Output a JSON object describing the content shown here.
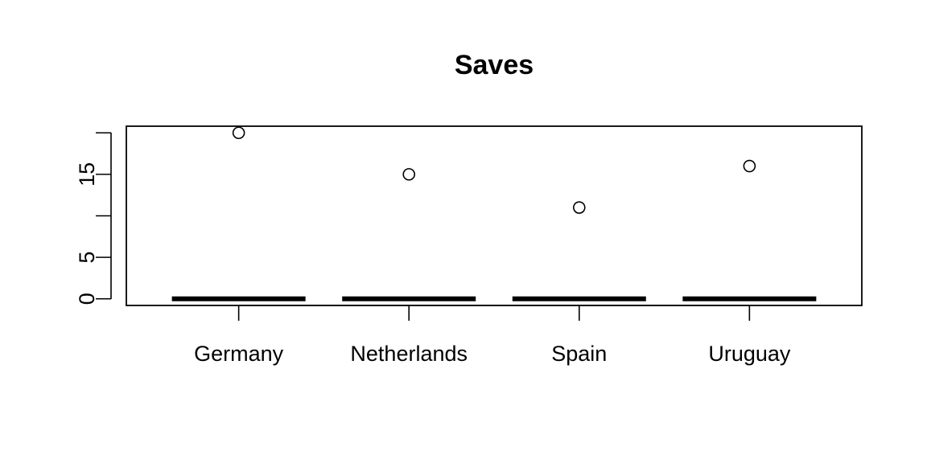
{
  "chart_data": {
    "type": "boxplot",
    "title": "Saves",
    "xlabel": "",
    "ylabel": "",
    "categories": [
      "Germany",
      "Netherlands",
      "Spain",
      "Uruguay"
    ],
    "boxes": [
      {
        "category": "Germany",
        "min": 0,
        "q1": 0,
        "median": 0,
        "q3": 0,
        "max": 0,
        "outliers": [
          20
        ]
      },
      {
        "category": "Netherlands",
        "min": 0,
        "q1": 0,
        "median": 0,
        "q3": 0,
        "max": 0,
        "outliers": [
          15
        ]
      },
      {
        "category": "Spain",
        "min": 0,
        "q1": 0,
        "median": 0,
        "q3": 0,
        "max": 0,
        "outliers": [
          11
        ]
      },
      {
        "category": "Uruguay",
        "min": 0,
        "q1": 0,
        "median": 0,
        "q3": 0,
        "max": 0,
        "outliers": [
          16
        ]
      }
    ],
    "y_ticks": [
      0,
      5,
      10,
      15,
      20
    ],
    "y_tick_labels": [
      "0",
      "5",
      "",
      "15",
      ""
    ],
    "ylim": [
      -0.8,
      20.8
    ],
    "grid": false,
    "legend": "none"
  }
}
